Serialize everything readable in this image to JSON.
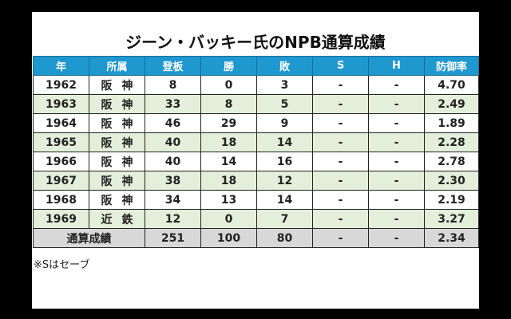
{
  "title": "ジーン・バッキー氏のNPB通算成績",
  "table": {
    "headers": [
      "年",
      "所属",
      "登板",
      "勝",
      "敗",
      "S",
      "H",
      "防御率"
    ],
    "rows": [
      [
        "1962",
        "阪神",
        "8",
        "0",
        "3",
        "-",
        "-",
        "4.70"
      ],
      [
        "1963",
        "阪神",
        "33",
        "8",
        "5",
        "-",
        "-",
        "2.49"
      ],
      [
        "1964",
        "阪神",
        "46",
        "29",
        "9",
        "-",
        "-",
        "1.89"
      ],
      [
        "1965",
        "阪神",
        "40",
        "18",
        "14",
        "-",
        "-",
        "2.28"
      ],
      [
        "1966",
        "阪神",
        "40",
        "14",
        "16",
        "-",
        "-",
        "2.78"
      ],
      [
        "1967",
        "阪神",
        "38",
        "18",
        "12",
        "-",
        "-",
        "2.30"
      ],
      [
        "1968",
        "阪神",
        "34",
        "13",
        "14",
        "-",
        "-",
        "2.19"
      ],
      [
        "1969",
        "近鉄",
        "12",
        "0",
        "7",
        "-",
        "-",
        "3.27"
      ]
    ],
    "total": [
      "通算成績",
      "251",
      "100",
      "80",
      "-",
      "-",
      "2.34"
    ]
  },
  "note": "※Sはセーブ",
  "colors": {
    "header_bg": "#1f97cf",
    "even_row_bg": "#e3efda",
    "total_bg": "#d8d8d8"
  }
}
